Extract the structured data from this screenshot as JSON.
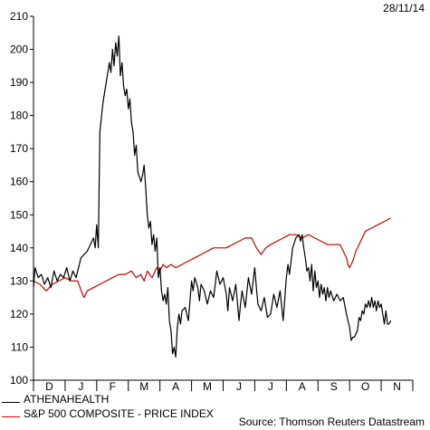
{
  "header": {
    "date": "28/11/14"
  },
  "footer": {
    "source": "Source: Thomson Reuters Datastream"
  },
  "colors": {
    "series_0": "#000000",
    "series_1": "#d00000"
  },
  "chart_data": {
    "type": "line",
    "title": "",
    "xlabel": "",
    "ylabel": "",
    "ylim": [
      100,
      210
    ],
    "yticks": [
      100,
      110,
      120,
      130,
      140,
      150,
      160,
      170,
      180,
      190,
      200,
      210
    ],
    "months": [
      "D",
      "J",
      "F",
      "M",
      "A",
      "M",
      "J",
      "J",
      "A",
      "S",
      "O",
      "N"
    ],
    "x_range": [
      0,
      12
    ],
    "grid": false,
    "legend_position": "bottom-left",
    "series": [
      {
        "name": "ATHENAHEALTH",
        "color": "#000000",
        "points": [
          [
            0.0,
            128
          ],
          [
            0.05,
            134
          ],
          [
            0.15,
            131
          ],
          [
            0.25,
            132
          ],
          [
            0.35,
            129
          ],
          [
            0.45,
            131
          ],
          [
            0.55,
            128
          ],
          [
            0.65,
            133
          ],
          [
            0.75,
            130
          ],
          [
            0.85,
            132
          ],
          [
            0.95,
            131
          ],
          [
            1.05,
            134
          ],
          [
            1.15,
            130
          ],
          [
            1.25,
            133
          ],
          [
            1.35,
            131
          ],
          [
            1.5,
            137
          ],
          [
            1.6,
            138
          ],
          [
            1.7,
            139
          ],
          [
            1.8,
            141
          ],
          [
            1.9,
            143
          ],
          [
            1.95,
            140
          ],
          [
            2.0,
            147
          ],
          [
            2.05,
            140
          ],
          [
            2.1,
            175
          ],
          [
            2.2,
            184
          ],
          [
            2.3,
            190
          ],
          [
            2.4,
            196
          ],
          [
            2.45,
            193
          ],
          [
            2.5,
            200
          ],
          [
            2.55,
            195
          ],
          [
            2.6,
            202
          ],
          [
            2.65,
            198
          ],
          [
            2.7,
            204
          ],
          [
            2.75,
            192
          ],
          [
            2.8,
            196
          ],
          [
            2.85,
            189
          ],
          [
            2.9,
            186
          ],
          [
            2.95,
            188
          ],
          [
            3.0,
            182
          ],
          [
            3.05,
            185
          ],
          [
            3.1,
            178
          ],
          [
            3.15,
            175
          ],
          [
            3.2,
            168
          ],
          [
            3.25,
            171
          ],
          [
            3.3,
            163
          ],
          [
            3.4,
            160
          ],
          [
            3.45,
            162
          ],
          [
            3.5,
            165
          ],
          [
            3.55,
            158
          ],
          [
            3.6,
            150
          ],
          [
            3.65,
            146
          ],
          [
            3.7,
            148
          ],
          [
            3.75,
            141
          ],
          [
            3.8,
            144
          ],
          [
            3.85,
            139
          ],
          [
            3.9,
            143
          ],
          [
            3.95,
            131
          ],
          [
            4.0,
            134
          ],
          [
            4.05,
            127
          ],
          [
            4.1,
            124
          ],
          [
            4.15,
            126
          ],
          [
            4.2,
            123
          ],
          [
            4.25,
            128
          ],
          [
            4.3,
            118
          ],
          [
            4.35,
            115
          ],
          [
            4.4,
            108
          ],
          [
            4.45,
            110
          ],
          [
            4.5,
            107
          ],
          [
            4.55,
            116
          ],
          [
            4.6,
            120
          ],
          [
            4.65,
            117
          ],
          [
            4.7,
            121
          ],
          [
            4.8,
            122
          ],
          [
            4.9,
            118
          ],
          [
            5.0,
            130
          ],
          [
            5.05,
            127
          ],
          [
            5.1,
            131
          ],
          [
            5.2,
            128
          ],
          [
            5.25,
            124
          ],
          [
            5.3,
            129
          ],
          [
            5.4,
            127
          ],
          [
            5.5,
            123
          ],
          [
            5.6,
            127
          ],
          [
            5.7,
            125
          ],
          [
            5.8,
            133
          ],
          [
            5.9,
            129
          ],
          [
            6.0,
            131
          ],
          [
            6.1,
            126
          ],
          [
            6.15,
            121
          ],
          [
            6.2,
            128
          ],
          [
            6.3,
            124
          ],
          [
            6.4,
            129
          ],
          [
            6.5,
            118
          ],
          [
            6.55,
            123
          ],
          [
            6.6,
            127
          ],
          [
            6.7,
            122
          ],
          [
            6.8,
            131
          ],
          [
            6.9,
            126
          ],
          [
            7.0,
            134
          ],
          [
            7.05,
            128
          ],
          [
            7.1,
            123
          ],
          [
            7.2,
            121
          ],
          [
            7.3,
            125
          ],
          [
            7.4,
            119
          ],
          [
            7.5,
            120
          ],
          [
            7.6,
            126
          ],
          [
            7.7,
            122
          ],
          [
            7.8,
            127
          ],
          [
            7.9,
            118
          ],
          [
            8.0,
            131
          ],
          [
            8.05,
            135
          ],
          [
            8.1,
            132
          ],
          [
            8.2,
            140
          ],
          [
            8.3,
            143
          ],
          [
            8.4,
            144
          ],
          [
            8.45,
            142
          ],
          [
            8.5,
            144
          ],
          [
            8.55,
            140
          ],
          [
            8.6,
            137
          ],
          [
            8.65,
            133
          ],
          [
            8.7,
            134
          ],
          [
            8.75,
            130
          ],
          [
            8.8,
            135
          ],
          [
            8.85,
            127
          ],
          [
            8.9,
            133
          ],
          [
            8.95,
            128
          ],
          [
            9.0,
            130
          ],
          [
            9.05,
            125
          ],
          [
            9.1,
            129
          ],
          [
            9.15,
            126
          ],
          [
            9.2,
            128
          ],
          [
            9.25,
            124
          ],
          [
            9.3,
            128
          ],
          [
            9.35,
            125
          ],
          [
            9.4,
            127
          ],
          [
            9.5,
            124
          ],
          [
            9.6,
            126
          ],
          [
            9.7,
            124
          ],
          [
            9.8,
            125
          ],
          [
            9.9,
            120
          ],
          [
            9.95,
            118
          ],
          [
            10.0,
            116
          ],
          [
            10.05,
            112
          ],
          [
            10.1,
            113
          ],
          [
            10.15,
            113
          ],
          [
            10.2,
            114
          ],
          [
            10.25,
            115
          ],
          [
            10.3,
            119
          ],
          [
            10.35,
            118
          ],
          [
            10.4,
            121
          ],
          [
            10.45,
            120
          ],
          [
            10.5,
            123
          ],
          [
            10.55,
            122
          ],
          [
            10.6,
            124
          ],
          [
            10.65,
            122
          ],
          [
            10.7,
            125
          ],
          [
            10.75,
            122
          ],
          [
            10.8,
            124
          ],
          [
            10.85,
            121
          ],
          [
            10.9,
            124
          ],
          [
            10.95,
            122
          ],
          [
            11.0,
            123
          ],
          [
            11.05,
            120
          ],
          [
            11.1,
            117
          ],
          [
            11.15,
            121
          ],
          [
            11.2,
            117
          ],
          [
            11.25,
            117
          ],
          [
            11.3,
            118
          ]
        ]
      },
      {
        "name": "S&P 500 COMPOSITE - PRICE INDEX",
        "color": "#d00000",
        "points": [
          [
            0.0,
            130
          ],
          [
            0.2,
            129
          ],
          [
            0.4,
            127
          ],
          [
            0.6,
            129
          ],
          [
            0.8,
            130
          ],
          [
            1.0,
            131
          ],
          [
            1.2,
            130
          ],
          [
            1.4,
            130
          ],
          [
            1.55,
            126
          ],
          [
            1.6,
            125
          ],
          [
            1.7,
            127
          ],
          [
            1.9,
            128
          ],
          [
            2.1,
            129
          ],
          [
            2.3,
            130
          ],
          [
            2.5,
            131
          ],
          [
            2.7,
            132
          ],
          [
            2.9,
            132
          ],
          [
            3.1,
            133
          ],
          [
            3.25,
            131
          ],
          [
            3.4,
            132
          ],
          [
            3.5,
            130
          ],
          [
            3.6,
            133
          ],
          [
            3.75,
            131
          ],
          [
            3.9,
            134
          ],
          [
            4.0,
            133
          ],
          [
            4.1,
            135
          ],
          [
            4.2,
            134
          ],
          [
            4.35,
            135
          ],
          [
            4.5,
            134
          ],
          [
            4.7,
            135
          ],
          [
            4.9,
            136
          ],
          [
            5.1,
            137
          ],
          [
            5.3,
            138
          ],
          [
            5.5,
            139
          ],
          [
            5.7,
            140
          ],
          [
            5.9,
            140
          ],
          [
            6.1,
            140
          ],
          [
            6.3,
            141
          ],
          [
            6.5,
            142
          ],
          [
            6.7,
            143
          ],
          [
            6.9,
            143
          ],
          [
            7.05,
            140
          ],
          [
            7.2,
            138
          ],
          [
            7.35,
            140
          ],
          [
            7.5,
            141
          ],
          [
            7.7,
            142
          ],
          [
            7.9,
            143
          ],
          [
            8.1,
            144
          ],
          [
            8.3,
            144
          ],
          [
            8.5,
            143
          ],
          [
            8.7,
            144
          ],
          [
            8.9,
            143
          ],
          [
            9.1,
            142
          ],
          [
            9.3,
            141
          ],
          [
            9.5,
            141
          ],
          [
            9.7,
            141
          ],
          [
            9.8,
            139
          ],
          [
            9.9,
            137
          ],
          [
            9.95,
            135
          ],
          [
            10.0,
            134
          ],
          [
            10.05,
            135
          ],
          [
            10.1,
            136
          ],
          [
            10.2,
            139
          ],
          [
            10.35,
            142
          ],
          [
            10.5,
            145
          ],
          [
            10.7,
            146
          ],
          [
            10.9,
            147
          ],
          [
            11.1,
            148
          ],
          [
            11.3,
            149
          ]
        ]
      }
    ]
  }
}
